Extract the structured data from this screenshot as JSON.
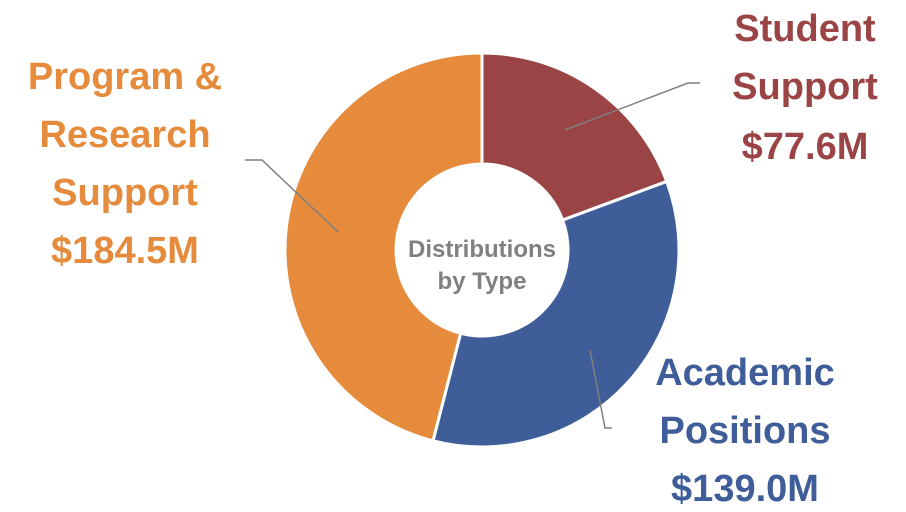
{
  "chart_data": {
    "type": "pie",
    "donut": true,
    "center_label": "Distributions by Type",
    "categories": [
      "Student Support",
      "Academic Positions",
      "Program & Research Support"
    ],
    "values": [
      77.6,
      139.0,
      184.5
    ],
    "value_labels": [
      "$77.6M",
      "$139.0M",
      "$184.5M"
    ],
    "colors": [
      "#9b4446",
      "#3f5e99",
      "#e58b3b"
    ]
  }
}
